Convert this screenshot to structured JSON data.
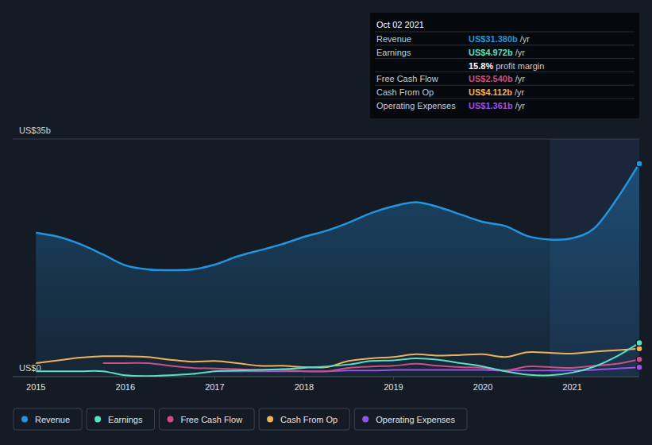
{
  "chart_data": {
    "type": "line",
    "x": [
      2015.0,
      2015.25,
      2015.5,
      2015.75,
      2016.0,
      2016.25,
      2016.5,
      2016.75,
      2017.0,
      2017.25,
      2017.5,
      2017.75,
      2018.0,
      2018.25,
      2018.5,
      2018.75,
      2019.0,
      2019.25,
      2019.5,
      2019.75,
      2020.0,
      2020.25,
      2020.5,
      2020.75,
      2021.0,
      2021.25,
      2021.5,
      2021.75
    ],
    "xlim": [
      2014.74,
      2021.75
    ],
    "xticks": [
      2015,
      2016,
      2017,
      2018,
      2019,
      2020,
      2021
    ],
    "ylim": [
      0,
      35
    ],
    "yticks": [
      {
        "value": 0,
        "label": "US$0"
      },
      {
        "value": 35,
        "label": "US$35b"
      }
    ],
    "grid": true,
    "legend": "bottom",
    "series": [
      {
        "name": "Revenue",
        "color": "#2394df",
        "values": [
          21.2,
          20.6,
          19.5,
          18.0,
          16.4,
          15.8,
          15.7,
          15.8,
          16.5,
          17.7,
          18.6,
          19.5,
          20.6,
          21.5,
          22.7,
          24.1,
          25.1,
          25.7,
          25.0,
          23.9,
          22.8,
          22.2,
          20.7,
          20.2,
          20.4,
          21.9,
          26.2,
          31.38
        ]
      },
      {
        "name": "Earnings",
        "color": "#58e0c6",
        "values": [
          0.8,
          0.8,
          0.8,
          0.8,
          0.2,
          0.1,
          0.2,
          0.4,
          0.8,
          0.9,
          1.0,
          1.1,
          1.3,
          1.5,
          1.8,
          2.3,
          2.4,
          2.7,
          2.5,
          2.0,
          1.5,
          0.8,
          0.3,
          0.2,
          0.6,
          1.5,
          3.0,
          4.972
        ]
      },
      {
        "name": "Free Cash Flow",
        "color": "#c94f86",
        "values": [
          null,
          null,
          null,
          2.0,
          2.0,
          2.0,
          1.6,
          1.3,
          1.2,
          1.1,
          1.0,
          1.0,
          0.8,
          0.8,
          1.3,
          1.5,
          1.6,
          1.9,
          1.6,
          1.4,
          1.3,
          0.9,
          1.5,
          1.4,
          1.3,
          1.6,
          1.9,
          2.54
        ]
      },
      {
        "name": "Cash From Op",
        "color": "#f0b15c",
        "values": [
          2.0,
          2.4,
          2.8,
          3.0,
          3.0,
          2.9,
          2.5,
          2.2,
          2.3,
          2.0,
          1.6,
          1.6,
          1.4,
          1.4,
          2.3,
          2.7,
          2.9,
          3.3,
          3.1,
          3.2,
          3.3,
          2.9,
          3.6,
          3.5,
          3.4,
          3.7,
          3.9,
          4.112
        ]
      },
      {
        "name": "Operating Expenses",
        "color": "#9c50e8",
        "values": [
          null,
          null,
          null,
          null,
          null,
          null,
          null,
          null,
          0.8,
          0.8,
          0.8,
          0.8,
          0.8,
          0.8,
          0.9,
          0.9,
          1.0,
          1.0,
          1.0,
          1.0,
          1.0,
          0.9,
          0.9,
          0.9,
          0.9,
          1.0,
          1.2,
          1.361
        ]
      }
    ],
    "annotation": {
      "date": "Oct 02 2021",
      "rows": [
        {
          "label": "Revenue",
          "value": "US$31.380b",
          "unit": "/yr",
          "color": "#2394df"
        },
        {
          "label": "Earnings",
          "value": "US$4.972b",
          "unit": "/yr",
          "color": "#58e0c6"
        },
        {
          "margin": "15.8%",
          "text": "profit margin"
        },
        {
          "label": "Free Cash Flow",
          "value": "US$2.540b",
          "unit": "/yr",
          "color": "#c94f86"
        },
        {
          "label": "Cash From Op",
          "value": "US$4.112b",
          "unit": "/yr",
          "color": "#f0b15c"
        },
        {
          "label": "Operating Expenses",
          "value": "US$1.361b",
          "unit": "/yr",
          "color": "#9c50e8"
        }
      ]
    }
  }
}
